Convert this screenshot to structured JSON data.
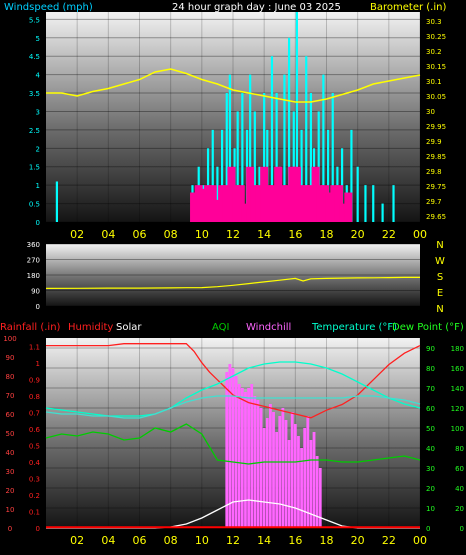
{
  "title": "24 hour graph day : June 03 2025",
  "colors": {
    "wind_speed": "#00ffff",
    "wind_gust": "#ff0099",
    "barometer": "#ffff00",
    "direction": "#ffff00",
    "rain": "#ff0000",
    "humidity": "#ff2020",
    "solar": "#ffffff",
    "aqi": "#00cc00",
    "windchill": "#ff66ff",
    "temperature": "#00ffcc",
    "dewpoint": "#20ff20",
    "teal_line": "#40e0d0",
    "rain_line": "#ff0000"
  },
  "chart_data": [
    {
      "type": "bar",
      "title": "24 hour graph day : June 03 2025",
      "ylabel_left": "Windspeed (mph)",
      "ylabel_right": "Barometer (.in)",
      "x_ticks": [
        "02",
        "04",
        "06",
        "08",
        "10",
        "12",
        "14",
        "16",
        "18",
        "20",
        "22",
        "00"
      ],
      "y_ticks_left": [
        "0",
        "0.5",
        "1",
        "1.5",
        "2",
        "2.5",
        "3",
        "3.5",
        "4",
        "4.5",
        "5",
        "5.5"
      ],
      "y_ticks_right": [
        "29.65",
        "29.7",
        "29.75",
        "29.8",
        "29.85",
        "29.9",
        "29.95",
        "30",
        "30.05",
        "30.1",
        "30.15",
        "30.2",
        "30.25",
        "30.3"
      ],
      "ylim_left": [
        0,
        5.7
      ],
      "ylim_right": [
        29.63,
        30.33
      ],
      "xlim_hours": [
        0,
        24
      ],
      "series": [
        {
          "key": "wind_speed",
          "type": "bar",
          "hours": [
            0.7,
            9.4,
            9.8,
            10.1,
            10.4,
            10.7,
            11.0,
            11.3,
            11.6,
            11.8,
            12.1,
            12.3,
            12.6,
            12.9,
            13.1,
            13.4,
            13.7,
            14.0,
            14.2,
            14.5,
            14.8,
            15.0,
            15.3,
            15.6,
            15.9,
            16.1,
            16.4,
            16.7,
            17.0,
            17.2,
            17.5,
            17.8,
            18.1,
            18.4,
            18.7,
            19.0,
            19.3,
            19.6,
            20.0,
            20.5,
            21.0,
            21.6,
            22.3
          ],
          "values": [
            1.1,
            1.0,
            1.5,
            1.0,
            2.0,
            2.5,
            1.5,
            2.5,
            3.5,
            4.0,
            2.0,
            3.0,
            3.5,
            2.5,
            4.0,
            3.0,
            1.5,
            3.5,
            2.5,
            4.5,
            3.5,
            1.5,
            4.0,
            5.0,
            3.0,
            5.7,
            2.5,
            4.5,
            3.5,
            2.0,
            3.0,
            4.0,
            2.5,
            3.5,
            1.5,
            2.0,
            1.0,
            2.5,
            1.5,
            1.0,
            1.0,
            0.5,
            1.0
          ]
        },
        {
          "key": "wind_gust",
          "type": "bar",
          "hours": [
            9.5,
            9.8,
            10.1,
            10.4,
            10.7,
            11.0,
            11.3,
            11.6,
            11.9,
            12.2,
            12.5,
            12.8,
            13.1,
            13.4,
            13.7,
            14.0,
            14.3,
            14.6,
            14.9,
            15.2,
            15.5,
            15.8,
            16.1,
            16.4,
            16.7,
            17.0,
            17.3,
            17.6,
            17.9,
            18.2,
            18.5,
            18.8,
            19.1,
            19.4
          ],
          "values": [
            0.8,
            1.0,
            0.9,
            1.0,
            1.0,
            0.6,
            1.0,
            1.0,
            1.5,
            1.0,
            1.0,
            0.5,
            1.5,
            1.0,
            1.0,
            1.5,
            1.0,
            1.0,
            1.5,
            1.0,
            1.0,
            1.5,
            1.5,
            1.0,
            1.0,
            1.0,
            1.5,
            1.0,
            1.0,
            0.8,
            1.0,
            1.0,
            0.5,
            0.8
          ]
        },
        {
          "key": "barometer",
          "type": "line",
          "axis": "right",
          "x": [
            0,
            1,
            2,
            3,
            4,
            5,
            6,
            7,
            8,
            9,
            10,
            11,
            12,
            13,
            14,
            15,
            16,
            17,
            18,
            19,
            20,
            21,
            22,
            23,
            24
          ],
          "y": [
            30.06,
            30.06,
            30.05,
            30.065,
            30.075,
            30.09,
            30.105,
            30.13,
            30.14,
            30.125,
            30.105,
            30.09,
            30.07,
            30.06,
            30.05,
            30.04,
            30.03,
            30.03,
            30.04,
            30.055,
            30.07,
            30.09,
            30.1,
            30.11,
            30.12
          ]
        }
      ]
    },
    {
      "type": "line",
      "y_ticks": [
        "0",
        "90",
        "180",
        "270",
        "360"
      ],
      "ylim": [
        0,
        360
      ],
      "direction_labels": [
        "N",
        "W",
        "S",
        "E",
        "N"
      ],
      "series": [
        {
          "key": "direction",
          "x": [
            0,
            2,
            4,
            6,
            8,
            9,
            10,
            11,
            12,
            13,
            14,
            15,
            16,
            16.5,
            17,
            18,
            19,
            20,
            21,
            22,
            23,
            24
          ],
          "y": [
            102,
            103,
            104,
            104,
            105,
            106,
            107,
            112,
            120,
            130,
            140,
            150,
            160,
            145,
            158,
            160,
            162,
            163,
            164,
            165,
            166,
            166
          ]
        }
      ]
    },
    {
      "type": "line",
      "labels": {
        "rainfall": "Rainfall (.in)",
        "humidity": "Humidity",
        "solar": "Solar",
        "aqi": "AQI",
        "windchill": "Windchill",
        "temperature": "Temperature (°F)",
        "dewpoint": "Dew Point (°F)"
      },
      "x_ticks": [
        "02",
        "04",
        "06",
        "08",
        "10",
        "12",
        "14",
        "16",
        "18",
        "20",
        "22",
        "00"
      ],
      "y_ticks_left_pct": [
        "0",
        "10",
        "20",
        "30",
        "40",
        "50",
        "60",
        "70",
        "80",
        "90",
        "100"
      ],
      "y_ticks_left_rain": [
        "0",
        "0.1",
        "0.2",
        "0.3",
        "0.4",
        "0.5",
        "0.6",
        "0.7",
        "0.8",
        "0.9",
        "1",
        "1.1"
      ],
      "y_ticks_right_temp": [
        "0",
        "10",
        "20",
        "30",
        "40",
        "50",
        "60",
        "70",
        "80",
        "90"
      ],
      "y_ticks_right_solar": [
        "0",
        "20",
        "40",
        "60",
        "80",
        "100",
        "120",
        "140",
        "160",
        "180"
      ],
      "ylim_left_pct": [
        0,
        100
      ],
      "ylim_right_temp": [
        0,
        95
      ],
      "series": [
        {
          "key": "humidity",
          "axis": "pct",
          "x": [
            0,
            1,
            2,
            3,
            4,
            5,
            6,
            7,
            8,
            9,
            9.5,
            10,
            10.5,
            11,
            11.5,
            12,
            13,
            14,
            15,
            16,
            17,
            18,
            19,
            20,
            21,
            22,
            23,
            24
          ],
          "y": [
            96,
            96,
            96,
            96,
            96,
            97,
            97,
            97,
            97,
            97,
            93,
            87,
            82,
            78,
            74,
            70,
            66,
            64,
            62,
            60,
            58,
            62,
            65,
            70,
            78,
            86,
            92,
            96
          ]
        },
        {
          "key": "temperature",
          "axis": "temp",
          "x": [
            0,
            1,
            2,
            3,
            4,
            5,
            6,
            7,
            8,
            9,
            10,
            11,
            12,
            13,
            14,
            15,
            16,
            17,
            18,
            19,
            20,
            21,
            22,
            23,
            24
          ],
          "y": [
            60,
            59,
            58,
            57,
            56,
            56,
            56,
            57,
            60,
            65,
            69,
            72,
            76,
            80,
            82,
            83,
            83,
            82,
            80,
            77,
            73,
            69,
            65,
            62,
            60
          ]
        },
        {
          "key": "teal_line",
          "axis": "temp",
          "x": [
            0,
            1,
            2,
            3,
            4,
            5,
            6,
            7,
            8,
            9,
            10,
            11,
            12,
            13,
            14,
            15,
            16,
            17,
            18,
            19,
            20,
            21,
            22,
            23,
            24
          ],
          "y": [
            58,
            57,
            57,
            56,
            56,
            55,
            55,
            57,
            60,
            63,
            65,
            66,
            66,
            65,
            65,
            65,
            65,
            65,
            65,
            65,
            66,
            66,
            65,
            64,
            62
          ]
        },
        {
          "key": "aqi",
          "axis": "temp",
          "x": [
            0,
            1,
            2,
            3,
            4,
            5,
            6,
            7,
            8,
            9,
            10,
            11,
            12,
            13,
            14,
            15,
            16,
            17,
            18,
            19,
            20,
            21,
            22,
            23,
            24
          ],
          "y": [
            45,
            47,
            46,
            48,
            47,
            44,
            45,
            50,
            48,
            52,
            47,
            34,
            33,
            32,
            33,
            33,
            33,
            34,
            34,
            33,
            33,
            34,
            35,
            36,
            34
          ]
        },
        {
          "key": "solar",
          "axis": "solar",
          "x": [
            0,
            6,
            7,
            8,
            9,
            10,
            11,
            12,
            13,
            14,
            15,
            16,
            17,
            18,
            19,
            20,
            24
          ],
          "y": [
            0,
            0,
            0,
            1,
            4,
            10,
            18,
            26,
            28,
            26,
            24,
            20,
            14,
            8,
            2,
            0,
            0
          ]
        },
        {
          "key": "windchill",
          "axis": "temp",
          "type": "bar",
          "hours": [
            11.6,
            11.8,
            12.0,
            12.2,
            12.4,
            12.6,
            12.8,
            13.0,
            13.2,
            13.4,
            13.6,
            13.8,
            14.0,
            14.2,
            14.4,
            14.6,
            14.8,
            15.0,
            15.2,
            15.4,
            15.6,
            15.8,
            16.0,
            16.2,
            16.4,
            16.6,
            16.8,
            17.0,
            17.2,
            17.4,
            17.6
          ],
          "values": [
            78,
            82,
            80,
            76,
            72,
            70,
            68,
            70,
            72,
            66,
            64,
            60,
            50,
            55,
            62,
            58,
            48,
            56,
            60,
            54,
            44,
            58,
            52,
            46,
            40,
            50,
            56,
            44,
            48,
            36,
            30
          ]
        },
        {
          "key": "rain_line",
          "axis": "rain",
          "x": [
            0,
            24
          ],
          "y": [
            0.005,
            0.005
          ]
        }
      ]
    }
  ]
}
